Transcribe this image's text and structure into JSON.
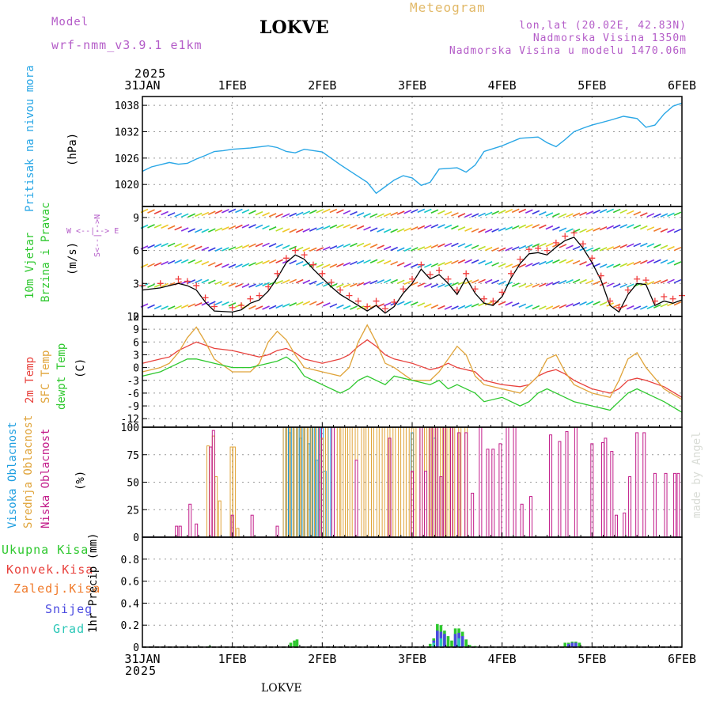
{
  "header": {
    "model_label": "Model",
    "model_name": "wrf-nmm_v3.9.1 e1km",
    "station": "LOKVE",
    "title": "Meteogram",
    "lonlat": "lon,lat (20.02E, 42.83N)",
    "altitude": "Nadmorska Visina 1350m",
    "model_altitude": "Nadmorska Visina u modelu 1470.06m",
    "year_top": "2025",
    "year_bottom": "2025",
    "footer_station": "LOKVE",
    "watermark": "made by Angel"
  },
  "dates": [
    "31JAN",
    "1FEB",
    "2FEB",
    "3FEB",
    "4FEB",
    "5FEB",
    "6FEB"
  ],
  "colors": {
    "pressure": "#2aa7e6",
    "temp2m": "#e8413c",
    "sfc": "#e0a43a",
    "dew": "#2ec82e",
    "wind_obs": "#000000",
    "wind_marker": "#f03c3c",
    "high_cloud": "#1e9ee0",
    "mid_cloud": "#e0a43a",
    "low_cloud": "#c21c8a",
    "total_precip": "#2ec82e",
    "conv_precip": "#e8413c",
    "frozen_precip": "#f07a2a",
    "snow": "#4a4ae0",
    "graupel": "#2bc7b7"
  },
  "panel_labels": {
    "pressure": {
      "name": "Pritisak na nivou mora",
      "unit": "(hPa)"
    },
    "wind": {
      "name1": "10m Vjetar",
      "name2": "Brzina i Pravac",
      "unit": "(m/s)",
      "compass_h": "W <--|--> E",
      "compass_v": "S<--|-->N"
    },
    "temp": {
      "l1": "2m Temp",
      "l2": "SFC Temp",
      "l3": "dewpt Temp",
      "unit": "(C)"
    },
    "cloud": {
      "l1": "Visoka Oblacnost",
      "l2": "Srednja Oblacnost",
      "l3": "Niska Oblacnost",
      "unit": "(%)"
    },
    "precip": {
      "l1": "Ukupna Kisa",
      "l2": "Konvek.Kisa",
      "l3": "Zaledj.Kisa",
      "l4": "Snijeg",
      "l5": "Grad",
      "unit": "1hr Precip (mm)"
    }
  },
  "chart_data": [
    {
      "type": "line",
      "title": "Pritisak na nivou mora",
      "ylabel": "(hPa)",
      "ylim": [
        1015,
        1040
      ],
      "yticks": [
        1020,
        1026,
        1032,
        1038
      ],
      "x_unit": "days since 31JAN 00UTC",
      "series": [
        {
          "name": "Pritisak na nivou mora",
          "x": [
            0,
            0.1,
            0.2,
            0.3,
            0.4,
            0.5,
            0.6,
            0.7,
            0.8,
            0.9,
            1.0,
            1.2,
            1.4,
            1.5,
            1.6,
            1.7,
            1.8,
            2.0,
            2.2,
            2.35,
            2.5,
            2.6,
            2.7,
            2.8,
            2.9,
            3.0,
            3.1,
            3.2,
            3.3,
            3.5,
            3.6,
            3.7,
            3.8,
            4.0,
            4.2,
            4.4,
            4.5,
            4.6,
            4.7,
            4.8,
            4.9,
            5.0,
            5.2,
            5.35,
            5.5,
            5.6,
            5.7,
            5.8,
            5.9,
            6.0
          ],
          "values": [
            1023,
            1024,
            1024.5,
            1025,
            1024.6,
            1024.8,
            1025.8,
            1026.6,
            1027.5,
            1027.7,
            1028,
            1028.3,
            1028.8,
            1028.4,
            1027.5,
            1027.2,
            1028,
            1027.4,
            1024.5,
            1022.5,
            1020.5,
            1018,
            1019.5,
            1021,
            1022,
            1021.5,
            1019.8,
            1020.5,
            1023.5,
            1023.8,
            1022.8,
            1024.4,
            1027.5,
            1028.8,
            1030.5,
            1030.8,
            1029.5,
            1028.6,
            1030.2,
            1032,
            1032.8,
            1033.5,
            1034.6,
            1035.5,
            1035,
            1033,
            1033.5,
            1036,
            1037.8,
            1038.5
          ]
        }
      ]
    },
    {
      "type": "line",
      "title": "10m Vjetar Brzina i Pravac",
      "ylabel": "(m/s)",
      "ylim": [
        0,
        10
      ],
      "yticks": [
        0,
        3,
        6,
        9
      ],
      "x_unit": "days since 31JAN 00UTC",
      "series": [
        {
          "name": "10m Vjetar",
          "x": [
            0,
            0.2,
            0.4,
            0.5,
            0.6,
            0.7,
            0.8,
            1.0,
            1.1,
            1.2,
            1.3,
            1.4,
            1.5,
            1.6,
            1.7,
            1.8,
            1.9,
            2.0,
            2.1,
            2.2,
            2.3,
            2.4,
            2.5,
            2.6,
            2.7,
            2.8,
            2.9,
            3.0,
            3.1,
            3.2,
            3.3,
            3.4,
            3.5,
            3.6,
            3.7,
            3.8,
            3.9,
            4.0,
            4.1,
            4.2,
            4.3,
            4.4,
            4.5,
            4.6,
            4.7,
            4.8,
            4.9,
            5.0,
            5.1,
            5.2,
            5.3,
            5.4,
            5.5,
            5.6,
            5.7,
            5.8,
            5.9,
            6.0
          ],
          "values": [
            2.4,
            2.6,
            3.0,
            2.8,
            2.4,
            1.3,
            0.5,
            0.4,
            0.6,
            1.2,
            1.5,
            2.3,
            3.5,
            4.9,
            5.6,
            5.2,
            4.3,
            3.5,
            2.7,
            2.0,
            1.5,
            1.0,
            0.5,
            1.0,
            0.3,
            0.9,
            2.1,
            3.0,
            4.3,
            3.4,
            3.8,
            3.0,
            2.0,
            3.5,
            2.1,
            1.2,
            1.0,
            1.8,
            3.5,
            4.8,
            5.7,
            5.8,
            5.6,
            6.3,
            6.9,
            7.2,
            6.2,
            4.9,
            3.3,
            1.0,
            0.4,
            2.0,
            3.0,
            2.9,
            1.0,
            1.4,
            1.2,
            1.5
          ]
        }
      ]
    },
    {
      "type": "line",
      "title": "Temp",
      "ylabel": "(C)",
      "ylim": [
        -14,
        12
      ],
      "yticks": [
        -12,
        -9,
        -6,
        -3,
        0,
        3,
        6,
        9,
        12
      ],
      "x_unit": "days since 31JAN 00UTC",
      "series": [
        {
          "name": "2m Temp",
          "x": [
            0,
            0.2,
            0.3,
            0.4,
            0.5,
            0.6,
            0.8,
            1.0,
            1.2,
            1.3,
            1.4,
            1.5,
            1.6,
            1.7,
            1.8,
            2.0,
            2.2,
            2.3,
            2.4,
            2.5,
            2.6,
            2.7,
            2.8,
            3.0,
            3.2,
            3.3,
            3.4,
            3.5,
            3.7,
            3.8,
            4.0,
            4.2,
            4.3,
            4.4,
            4.5,
            4.6,
            4.7,
            4.8,
            5.0,
            5.2,
            5.3,
            5.4,
            5.5,
            5.6,
            5.8,
            6.0
          ],
          "values": [
            1,
            2,
            2.5,
            4,
            5,
            6,
            4.5,
            4,
            3,
            2.5,
            3,
            4,
            4.5,
            3.5,
            2,
            1,
            2,
            3,
            5,
            6.5,
            5,
            3,
            2,
            1,
            -0.5,
            0,
            1,
            0,
            -1,
            -3,
            -4,
            -4.5,
            -4,
            -2,
            -1,
            -0.5,
            -1.5,
            -3,
            -5,
            -6,
            -5,
            -3,
            -2.5,
            -3,
            -4.5,
            -7
          ]
        },
        {
          "name": "SFC Temp",
          "x": [
            0,
            0.2,
            0.3,
            0.4,
            0.5,
            0.6,
            0.7,
            0.8,
            1.0,
            1.2,
            1.3,
            1.4,
            1.5,
            1.6,
            1.7,
            1.8,
            2.0,
            2.2,
            2.3,
            2.4,
            2.5,
            2.6,
            2.7,
            2.8,
            3.0,
            3.2,
            3.3,
            3.4,
            3.5,
            3.6,
            3.7,
            3.8,
            4.0,
            4.2,
            4.3,
            4.4,
            4.5,
            4.6,
            4.7,
            4.8,
            5.0,
            5.2,
            5.3,
            5.4,
            5.5,
            5.6,
            5.8,
            6.0
          ],
          "values": [
            -1,
            0,
            1,
            3.5,
            7,
            9.5,
            6,
            2,
            -1,
            -1,
            1,
            6,
            8.5,
            6.5,
            3,
            0,
            -1,
            -2,
            0,
            6,
            10,
            6,
            1,
            0,
            -3,
            -3,
            -1,
            2,
            5,
            3,
            -2,
            -4,
            -5,
            -6,
            -4,
            -2,
            2,
            3,
            -1,
            -4,
            -6,
            -7,
            -3,
            2,
            3.5,
            0,
            -5,
            -7.5
          ]
        },
        {
          "name": "dewpt Temp",
          "x": [
            0,
            0.2,
            0.3,
            0.4,
            0.5,
            0.6,
            0.8,
            1.0,
            1.2,
            1.4,
            1.5,
            1.6,
            1.7,
            1.8,
            2.0,
            2.2,
            2.3,
            2.4,
            2.5,
            2.6,
            2.7,
            2.8,
            3.0,
            3.2,
            3.3,
            3.4,
            3.5,
            3.7,
            3.8,
            4.0,
            4.2,
            4.3,
            4.4,
            4.5,
            4.6,
            4.7,
            4.8,
            5.0,
            5.2,
            5.3,
            5.4,
            5.5,
            5.6,
            5.8,
            6.0
          ],
          "values": [
            -2,
            -1,
            0,
            1,
            2,
            2,
            1,
            0,
            0,
            1,
            1.5,
            2.5,
            1,
            -2,
            -4,
            -6,
            -5,
            -3,
            -2,
            -3,
            -4,
            -2,
            -3,
            -4,
            -3,
            -5,
            -4,
            -6,
            -8,
            -7,
            -9,
            -8,
            -6,
            -5,
            -6,
            -7,
            -8,
            -9,
            -10,
            -8,
            -6,
            -5,
            -6,
            -8,
            -10.5
          ]
        }
      ]
    },
    {
      "type": "bar",
      "title": "Oblacnost",
      "ylabel": "(%)",
      "ylim": [
        0,
        100
      ],
      "yticks": [
        0,
        25,
        50,
        75,
        100
      ],
      "x_unit": "days since 31JAN 00UTC",
      "series": [
        {
          "name": "Visoka Oblacnost",
          "x": [
            1.58,
            1.61,
            1.64,
            1.67,
            1.7,
            1.73,
            1.76,
            1.79,
            1.82,
            1.85,
            1.88,
            1.91,
            1.94,
            1.97,
            2.0,
            2.03,
            2.08,
            3.0,
            3.25
          ],
          "values": [
            100,
            100,
            95,
            100,
            100,
            100,
            90,
            100,
            100,
            85,
            100,
            100,
            70,
            100,
            100,
            60,
            100,
            95,
            90
          ]
        },
        {
          "name": "Srednja Oblacnost",
          "x": [
            0.73,
            0.79,
            0.82,
            0.86,
            0.99,
            1.02,
            1.06,
            1.58,
            1.62,
            1.66,
            1.7,
            1.74,
            1.78,
            1.82,
            1.86,
            1.9,
            1.95,
            2.0,
            2.05,
            2.12,
            2.18,
            2.22,
            2.27,
            2.32,
            2.38,
            2.45,
            2.5,
            2.56,
            2.62,
            2.68,
            2.74,
            2.8,
            2.86,
            2.92,
            2.98,
            3.03,
            3.1,
            3.15,
            3.2,
            3.25,
            3.3,
            3.35,
            3.4,
            3.46,
            3.53,
            3.6
          ],
          "values": [
            83,
            92,
            55,
            33,
            82,
            82,
            8,
            100,
            100,
            100,
            100,
            100,
            100,
            100,
            100,
            100,
            100,
            90,
            100,
            100,
            100,
            100,
            100,
            100,
            100,
            100,
            100,
            100,
            100,
            100,
            100,
            100,
            100,
            100,
            100,
            100,
            100,
            100,
            100,
            100,
            100,
            100,
            100,
            100,
            100,
            100
          ]
        },
        {
          "name": "Niska Oblacnost",
          "x": [
            0.38,
            0.42,
            0.53,
            0.6,
            0.76,
            0.79,
            1.0,
            1.22,
            1.5,
            1.98,
            2.12,
            2.38,
            2.75,
            3.0,
            3.1,
            3.15,
            3.21,
            3.27,
            3.32,
            3.36,
            3.44,
            3.52,
            3.6,
            3.67,
            3.76,
            3.84,
            3.9,
            3.98,
            4.06,
            4.14,
            4.22,
            4.32,
            4.54,
            4.64,
            4.72,
            4.82,
            5.0,
            5.12,
            5.15,
            5.22,
            5.27,
            5.36,
            5.42,
            5.5,
            5.58,
            5.7,
            5.82,
            5.92,
            5.96
          ],
          "values": [
            10,
            10,
            30,
            12,
            82,
            97,
            20,
            20,
            10,
            100,
            100,
            70,
            90,
            60,
            100,
            60,
            100,
            100,
            55,
            100,
            100,
            95,
            95,
            40,
            100,
            80,
            80,
            85,
            100,
            100,
            30,
            37,
            93,
            87,
            96,
            100,
            85,
            86,
            90,
            78,
            20,
            22,
            55,
            95,
            95,
            58,
            58,
            58,
            58
          ]
        }
      ]
    },
    {
      "type": "bar",
      "title": "1hr Precip",
      "ylabel": "1hr Precip (mm)",
      "ylim": [
        0,
        1.0
      ],
      "yticks": [
        0,
        0.2,
        0.4,
        0.6,
        0.8
      ],
      "x_unit": "days since 31JAN 00UTC",
      "series": [
        {
          "name": "Ukupna Kisa",
          "x": [
            0.63,
            0.75,
            1.65,
            1.69,
            1.72,
            3.2,
            3.24,
            3.28,
            3.32,
            3.36,
            3.4,
            3.44,
            3.48,
            3.52,
            3.56,
            3.6,
            3.64,
            3.7,
            4.7,
            4.74,
            4.78,
            4.82,
            4.86
          ],
          "values": [
            0.005,
            0.01,
            0.04,
            0.06,
            0.07,
            0.03,
            0.08,
            0.21,
            0.2,
            0.15,
            0.1,
            0.06,
            0.17,
            0.17,
            0.14,
            0.07,
            0.02,
            0.01,
            0.04,
            0.04,
            0.05,
            0.05,
            0.04
          ]
        },
        {
          "name": "Snijeg",
          "x": [
            3.24,
            3.28,
            3.32,
            3.36,
            3.48,
            3.52,
            3.56,
            4.74,
            4.78,
            4.82
          ],
          "values": [
            0.06,
            0.15,
            0.14,
            0.12,
            0.12,
            0.13,
            0.1,
            0.03,
            0.04,
            0.04
          ]
        },
        {
          "name": "Grad",
          "x": [
            3.24,
            3.32,
            3.52
          ],
          "values": [
            0.04,
            0.08,
            0.08
          ]
        }
      ]
    }
  ]
}
